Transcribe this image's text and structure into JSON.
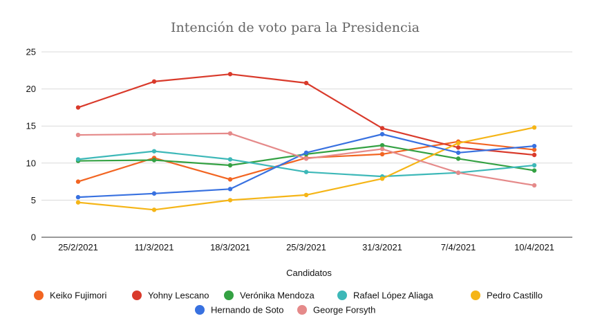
{
  "chart_data": {
    "type": "line",
    "title": "Intención de voto para la Presidencia",
    "xlabel": "Candidatos",
    "ylabel": "",
    "ylim": [
      0,
      25
    ],
    "yticks": [
      0,
      5,
      10,
      15,
      20,
      25
    ],
    "grid": true,
    "legend_position": "bottom",
    "categories": [
      "25/2/2021",
      "11/3/2021",
      "18/3/2021",
      "25/3/2021",
      "31/3/2021",
      "7/4/2021",
      "10/4/2021"
    ],
    "series": [
      {
        "name": "Keiko Fujimori",
        "color": "#f26522",
        "values": [
          7.5,
          10.7,
          7.8,
          10.7,
          11.2,
          12.9,
          11.8
        ]
      },
      {
        "name": "Yohny Lescano",
        "color": "#d93a2b",
        "values": [
          17.5,
          21.0,
          22.0,
          20.8,
          14.7,
          12.1,
          11.1
        ]
      },
      {
        "name": "Verónika Mendoza",
        "color": "#34a143",
        "values": [
          10.3,
          10.4,
          9.7,
          11.2,
          12.4,
          10.6,
          9.0
        ]
      },
      {
        "name": "Rafael López Aliaga",
        "color": "#3db8b8",
        "values": [
          10.5,
          11.6,
          10.5,
          8.8,
          8.2,
          8.7,
          9.7
        ]
      },
      {
        "name": "Pedro Castillo",
        "color": "#f5b517",
        "values": [
          4.7,
          3.7,
          5.0,
          5.7,
          7.9,
          12.7,
          14.8
        ]
      },
      {
        "name": "Hernando de Soto",
        "color": "#3871e0",
        "values": [
          5.4,
          5.9,
          6.5,
          11.4,
          13.9,
          11.4,
          12.3
        ]
      },
      {
        "name": "George Forsyth",
        "color": "#e58a8a",
        "values": [
          13.8,
          13.9,
          14.0,
          10.6,
          11.9,
          8.7,
          7.0
        ]
      }
    ]
  }
}
